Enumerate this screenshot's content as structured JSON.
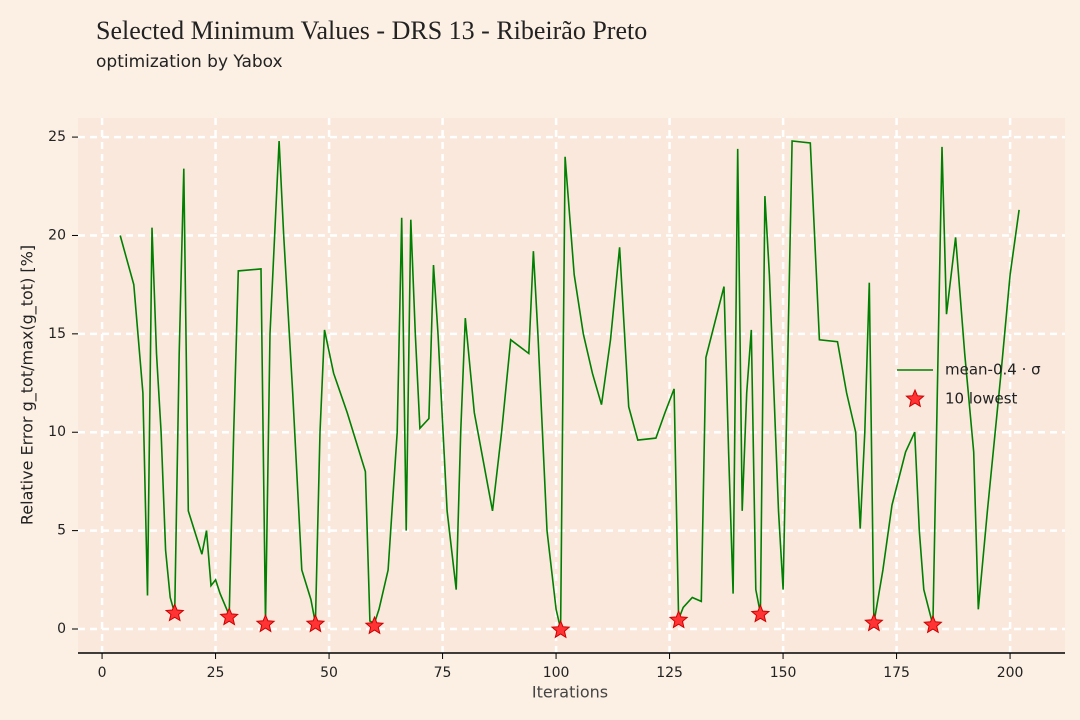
{
  "chart_data": {
    "type": "line",
    "title": "Selected Minimum Values - DRS 13 - Ribeirão Preto",
    "subtitle": "optimization by Yabox",
    "xlabel": "Iterations",
    "ylabel": "Relative Error g_tot/max(g_tot) [%]",
    "xlim": [
      -5.3,
      212.1
    ],
    "ylim": [
      -1.22,
      25.97
    ],
    "xticks": [
      0,
      25,
      50,
      75,
      100,
      125,
      150,
      175,
      200
    ],
    "yticks": [
      0,
      5,
      10,
      15,
      20,
      25
    ],
    "grid": true,
    "legend": "right",
    "series": [
      {
        "name": "mean-0.4 · σ",
        "type": "line",
        "color": "#008000",
        "x": [
          4,
          7,
          9,
          10,
          11,
          12,
          13,
          14,
          15,
          16,
          17,
          18,
          19,
          22,
          23,
          24,
          25,
          26,
          28,
          29,
          30,
          35,
          36,
          37,
          39,
          40,
          42,
          44,
          46,
          47,
          48,
          49,
          51,
          54,
          58,
          59,
          60,
          61,
          63,
          65,
          66,
          67,
          68,
          69,
          70,
          72,
          73,
          74,
          76,
          78,
          79,
          80,
          82,
          84,
          86,
          88,
          90,
          94,
          95,
          96,
          98,
          100,
          101,
          102,
          104,
          106,
          108,
          110,
          112,
          114,
          116,
          118,
          122,
          124,
          126,
          127,
          128,
          130,
          132,
          133,
          137,
          138,
          139,
          140,
          141,
          142,
          143,
          144,
          145,
          146,
          147,
          149,
          150,
          152,
          156,
          158,
          162,
          164,
          166,
          167,
          168,
          169,
          170,
          172,
          174,
          177,
          179,
          180,
          181,
          183,
          185,
          186,
          188,
          190,
          192,
          193,
          195,
          198,
          200,
          202
        ],
        "values": [
          20,
          17.5,
          12,
          1.7,
          20.4,
          14,
          10,
          4,
          1.6,
          0.8,
          14,
          23.4,
          6,
          3.8,
          5,
          2.2,
          2.5,
          1.8,
          0.7,
          10,
          18.2,
          18.3,
          0.3,
          15,
          24.8,
          20,
          12,
          3,
          1.5,
          0.3,
          10,
          15.2,
          13,
          11,
          8,
          0.4,
          0.3,
          1,
          3,
          10,
          20.9,
          5,
          20.8,
          15,
          10.2,
          10.7,
          18.5,
          15,
          6,
          2,
          10,
          15.8,
          11,
          8.5,
          6,
          10,
          14.7,
          14,
          19.2,
          15,
          5,
          1,
          0,
          24,
          18,
          15,
          13,
          11.4,
          14.7,
          19.4,
          11.3,
          9.6,
          9.7,
          11,
          12.2,
          0.5,
          1.1,
          1.6,
          1.4,
          13.8,
          17.4,
          9,
          1.8,
          24.4,
          6,
          12,
          15.2,
          2,
          0.8,
          22,
          18,
          6,
          2,
          24.8,
          24.7,
          14.7,
          14.6,
          12,
          10,
          5.1,
          10,
          17.6,
          0.3,
          3,
          6.3,
          9,
          10,
          5,
          2,
          0.2,
          24.5,
          16,
          19.9,
          14,
          9,
          1,
          6,
          13,
          18,
          21.3
        ]
      },
      {
        "name": "10 lowest",
        "type": "scatter",
        "color": "#ff3333",
        "x": [
          16,
          28,
          36,
          47,
          60,
          101,
          127,
          145,
          170,
          183
        ],
        "values": [
          0.8,
          0.6,
          0.25,
          0.25,
          0.15,
          -0.05,
          0.45,
          0.75,
          0.3,
          0.2
        ]
      }
    ]
  }
}
